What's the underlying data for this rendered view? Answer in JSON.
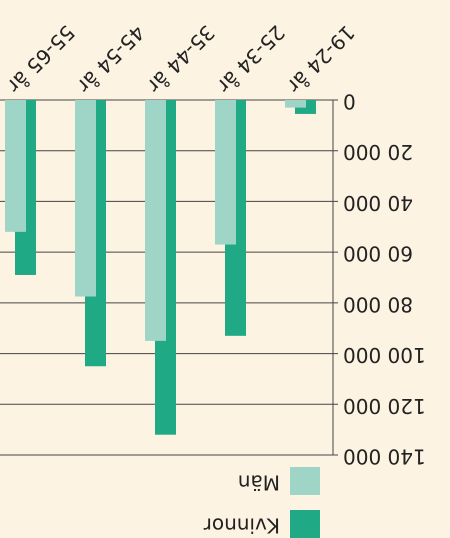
{
  "chart_data": {
    "type": "bar",
    "categories": [
      "19-24 år",
      "25-34 år",
      "35-44 år",
      "45-54 år",
      "55-65 år"
    ],
    "series": [
      {
        "name": "Kvinnor",
        "color": "#1faa85",
        "values": [
          5500,
          93000,
          132000,
          105000,
          69000
        ]
      },
      {
        "name": "Män",
        "color": "#9ed5c6",
        "values": [
          3000,
          57000,
          95000,
          77500,
          52000
        ]
      }
    ],
    "ylim": [
      0,
      140000
    ],
    "yticks": [
      0,
      {
        "value": 20000,
        "label": "20 000"
      },
      {
        "value": 40000,
        "label": "40 000"
      },
      {
        "value": 60000,
        "label": "60 000"
      },
      {
        "value": 80000,
        "label": "80 000"
      },
      {
        "value": 100000,
        "label": "100 000"
      },
      {
        "value": 120000,
        "label": "120 000"
      },
      {
        "value": 140000,
        "label": "140 000"
      }
    ],
    "grid": true
  }
}
